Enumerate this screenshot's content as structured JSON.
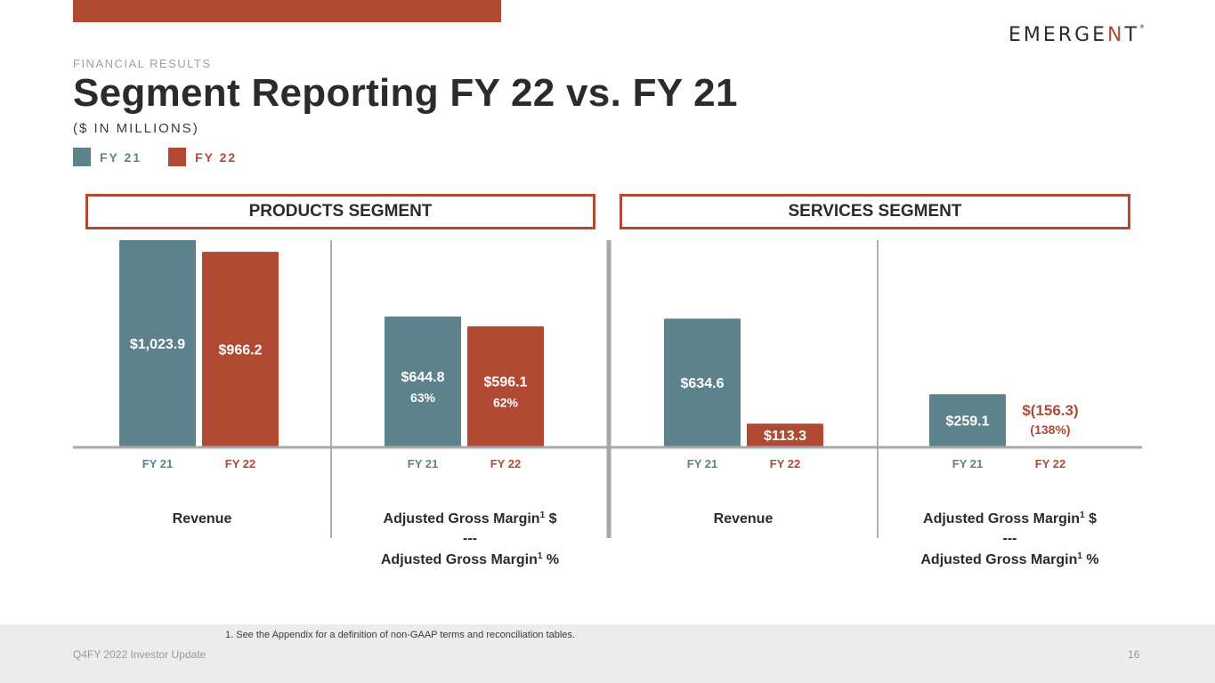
{
  "header": {
    "eyebrow": "FINANCIAL RESULTS",
    "title": "Segment Reporting FY 22 vs. FY 21",
    "subtitle": "($ IN MILLIONS)",
    "logo": {
      "main": "EMERGE",
      "accent": "N",
      "end": "T",
      "reg": "®"
    }
  },
  "legend": [
    {
      "label": "FY 21",
      "color": "#5e828b"
    },
    {
      "label": "FY 22",
      "color": "#b04a32"
    }
  ],
  "segments": [
    {
      "title": "PRODUCTS SEGMENT"
    },
    {
      "title": "SERVICES SEGMENT"
    }
  ],
  "chart_data": {
    "type": "bar",
    "title": "Segment Reporting FY 22 vs. FY 21",
    "ylabel": "$ in millions",
    "series_names": [
      "FY 21",
      "FY 22"
    ],
    "colors": {
      "FY 21": "#5e828b",
      "FY 22": "#b04a32"
    },
    "panels": [
      {
        "segment": "PRODUCTS SEGMENT",
        "metric": "Revenue",
        "caption": [
          "Revenue"
        ],
        "categories": [
          "FY 21",
          "FY 22"
        ],
        "values": [
          1023.9,
          966.2
        ],
        "labels": [
          "$1,023.9",
          "$966.2"
        ],
        "sublabels": [
          "",
          ""
        ]
      },
      {
        "segment": "PRODUCTS SEGMENT",
        "metric": "Adjusted Gross Margin",
        "caption": [
          "Adjusted Gross Margin",
          "1",
          " $",
          "---",
          "Adjusted Gross Margin",
          "1",
          " %"
        ],
        "categories": [
          "FY 21",
          "FY 22"
        ],
        "values": [
          644.8,
          596.1
        ],
        "labels": [
          "$644.8",
          "$596.1"
        ],
        "sublabels": [
          "63%",
          "62%"
        ]
      },
      {
        "segment": "SERVICES SEGMENT",
        "metric": "Revenue",
        "caption": [
          "Revenue"
        ],
        "categories": [
          "FY 21",
          "FY 22"
        ],
        "values": [
          634.6,
          113.3
        ],
        "labels": [
          "$634.6",
          "$113.3"
        ],
        "sublabels": [
          "",
          ""
        ]
      },
      {
        "segment": "SERVICES SEGMENT",
        "metric": "Adjusted Gross Margin",
        "caption": [
          "Adjusted Gross Margin",
          "1",
          " $",
          "---",
          "Adjusted Gross Margin",
          "1",
          " %"
        ],
        "categories": [
          "FY 21",
          "FY 22"
        ],
        "values": [
          259.1,
          -156.3
        ],
        "labels": [
          "$259.1",
          "$(156.3)"
        ],
        "sublabels": [
          "",
          "(138%)"
        ]
      }
    ]
  },
  "footer": {
    "footnote": "1. See the Appendix for a definition of non-GAAP terms and reconciliation tables.",
    "left": "Q4FY 2022 Investor Update",
    "page": "16"
  }
}
